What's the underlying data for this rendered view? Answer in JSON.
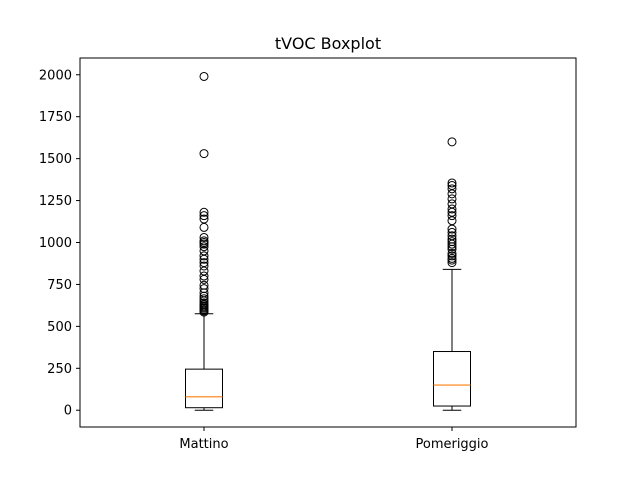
{
  "chart_data": {
    "type": "boxplot",
    "title": "tVOC Boxplot",
    "xlabel": "",
    "ylabel": "",
    "ylim": [
      -100,
      2100
    ],
    "yticks": [
      0,
      250,
      500,
      750,
      1000,
      1250,
      1500,
      1750,
      2000
    ],
    "categories": [
      "Mattino",
      "Pomeriggio"
    ],
    "grid": false,
    "colors": {
      "box": "#000000",
      "median": "#ff7f0e",
      "flier": "#000000"
    },
    "boxes": [
      {
        "name": "Mattino",
        "whisker_low": 0,
        "q1": 15,
        "median": 80,
        "q3": 245,
        "whisker_high": 575,
        "fliers": [
          585,
          592,
          600,
          608,
          615,
          622,
          630,
          640,
          652,
          665,
          680,
          700,
          725,
          745,
          780,
          800,
          830,
          860,
          880,
          900,
          920,
          950,
          975,
          990,
          1000,
          1010,
          1030,
          1090,
          1140,
          1160,
          1180,
          1530,
          1990
        ]
      },
      {
        "name": "Pomeriggio",
        "whisker_low": 0,
        "q1": 25,
        "median": 150,
        "q3": 350,
        "whisker_high": 840,
        "fliers": [
          880,
          895,
          905,
          920,
          935,
          960,
          975,
          990,
          1005,
          1020,
          1040,
          1060,
          1080,
          1130,
          1160,
          1180,
          1200,
          1230,
          1260,
          1290,
          1320,
          1340,
          1355,
          1600
        ]
      }
    ]
  }
}
